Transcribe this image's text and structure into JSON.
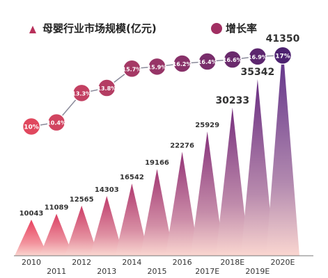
{
  "chart_data": {
    "type": "bar",
    "categories": [
      "2010",
      "2011",
      "2012",
      "2013",
      "2014",
      "2015",
      "2016",
      "2017E",
      "2018E",
      "2019E",
      "2020E"
    ],
    "series": [
      {
        "name": "母婴行业市场规模(亿元)",
        "marker": "triangle",
        "values": [
          10043,
          11089,
          12565,
          14303,
          16542,
          19166,
          22276,
          25929,
          30233,
          35342,
          41350
        ]
      },
      {
        "name": "增长率",
        "type": "line",
        "marker": "circle",
        "values": [
          10,
          10.4,
          13.3,
          13.8,
          15.7,
          15.9,
          16.2,
          16.4,
          16.6,
          16.9,
          17
        ]
      }
    ],
    "value_labels": [
      "10043",
      "11089",
      "12565",
      "14303",
      "16542",
      "19166",
      "22276",
      "25929",
      "30233",
      "35342",
      "41350"
    ],
    "rate_labels": [
      "10%",
      "10.4%",
      "13.3%",
      "13.8%",
      "15.7%",
      "15.9%",
      "16.2%",
      "16.4%",
      "16.6%",
      "16.9%",
      "17%"
    ],
    "legend": {
      "position": "top",
      "items": [
        "母婴行业市场规模(亿元)",
        "增长率"
      ]
    },
    "xlabel": "",
    "ylabel": "",
    "grid": false
  },
  "colors": {
    "bar_top_light": "#e8405e",
    "bar_top_dark": "#5a2b86",
    "bar_bottom": "#fad6d0",
    "circle_light": "#e0485e",
    "circle_dark": "#4d2270",
    "text_dark": "#333333",
    "legend_text": "#222222",
    "axis": "#777777"
  }
}
